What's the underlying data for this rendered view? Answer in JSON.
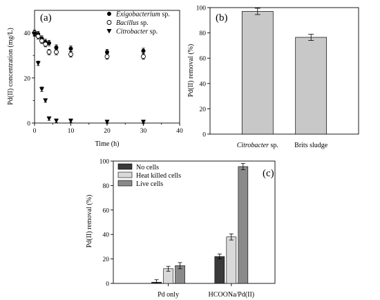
{
  "chart_data": [
    {
      "panel": "(a)",
      "type": "scatter",
      "xlabel": "Time (h)",
      "ylabel": "Pd(II) concentration (mg/L)",
      "xlim": [
        0,
        40
      ],
      "ylim": [
        0,
        50
      ],
      "xticks": [
        0,
        10,
        20,
        30,
        40
      ],
      "yticks": [
        0,
        20,
        40
      ],
      "legend_position": "top-right",
      "series": [
        {
          "name": "Exigobacterium sp.",
          "name_italic": "Exigobacterium",
          "name_rest": " sp.",
          "marker": "filled-circle",
          "x": [
            0,
            1,
            2,
            3,
            4,
            6,
            10,
            20,
            30
          ],
          "y": [
            40.0,
            39.5,
            37.5,
            36.0,
            35.5,
            33.5,
            33.0,
            31.5,
            32.0
          ],
          "err": [
            1.2,
            1.2,
            1.2,
            1.2,
            1.2,
            1.2,
            1.2,
            1.2,
            1.2
          ]
        },
        {
          "name": "Bacillus sp.",
          "name_italic": "Bacillus",
          "name_rest": " sp.",
          "marker": "open-circle",
          "x": [
            0,
            1,
            2,
            3,
            4,
            6,
            10,
            20,
            30
          ],
          "y": [
            40.0,
            38.5,
            36.5,
            35.0,
            31.5,
            31.5,
            30.5,
            29.5,
            29.5
          ],
          "err": [
            1.2,
            1.2,
            1.2,
            1.2,
            1.2,
            1.2,
            1.2,
            1.2,
            1.2
          ]
        },
        {
          "name": "Citrobacter sp.",
          "name_italic": "Citrobacter",
          "name_rest": " sp.",
          "marker": "filled-triangle-down",
          "x": [
            0,
            1,
            2,
            3,
            4,
            6,
            10,
            20,
            30
          ],
          "y": [
            39.5,
            26.5,
            15.0,
            10.0,
            2.0,
            1.0,
            1.0,
            0.5,
            0.5
          ],
          "err": [
            1.0,
            1.0,
            1.0,
            0.8,
            0.8,
            0.8,
            0.8,
            0.8,
            0.8
          ]
        }
      ]
    },
    {
      "panel": "(b)",
      "type": "bar",
      "ylabel": "Pd(II) removal (%)",
      "ylim": [
        0,
        100
      ],
      "yticks": [
        0,
        20,
        40,
        60,
        80,
        100
      ],
      "categories": [
        "Citrobacter sp.",
        "Brits sludge"
      ],
      "category_labels": [
        {
          "italic": "Citrobacter",
          "rest": " sp."
        },
        {
          "italic": "",
          "rest": "Brits sludge"
        }
      ],
      "values": [
        97,
        76.5
      ],
      "err": [
        2.5,
        2.5
      ],
      "bar_color": "#c8c8c8"
    },
    {
      "panel": "(c)",
      "type": "bar",
      "ylabel": "Pd(II) removal (%)",
      "ylim": [
        0,
        100
      ],
      "yticks": [
        0,
        20,
        40,
        60,
        80,
        100
      ],
      "categories": [
        "Pd only",
        "HCOONa/Pd(II)"
      ],
      "legend_position": "top-left",
      "series": [
        {
          "name": "No cells",
          "color": "#3a3a3a",
          "values": [
            1,
            22
          ],
          "err": [
            2,
            2
          ]
        },
        {
          "name": "Heat killed cells",
          "color": "#d9d9d9",
          "values": [
            12,
            38
          ],
          "err": [
            2,
            2.5
          ]
        },
        {
          "name": "Live cells",
          "color": "#8a8a8a",
          "values": [
            14.5,
            95.5
          ],
          "err": [
            2.5,
            2.5
          ]
        }
      ]
    }
  ]
}
